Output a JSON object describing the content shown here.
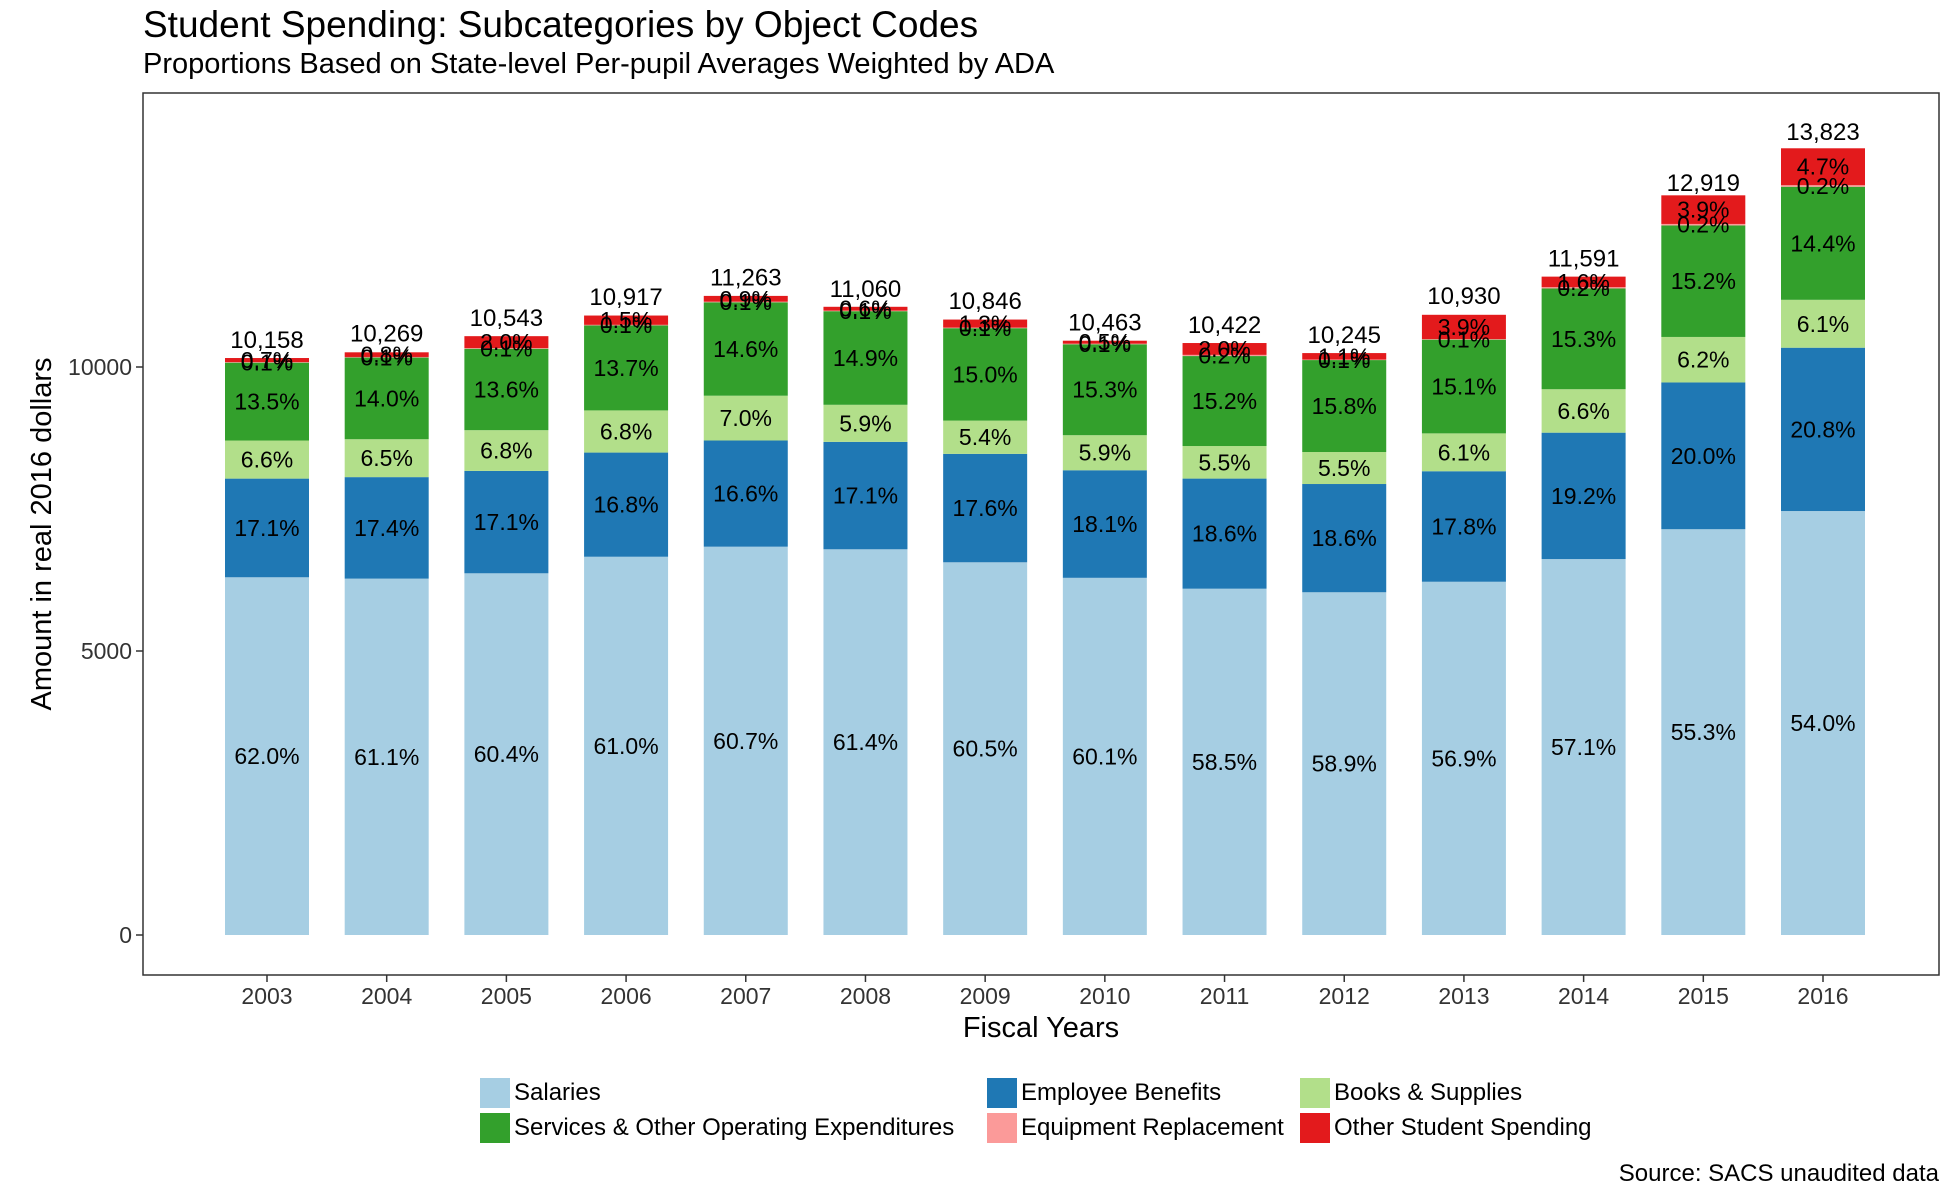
{
  "title": "Student Spending: Subcategories by Object Codes",
  "subtitle": "Proportions Based on State-level Per-pupil Averages Weighted by ADA",
  "source": "Source: SACS unaudited data",
  "legend": [
    {
      "label": "Salaries",
      "color": "#a6cee3"
    },
    {
      "label": "Employee Benefits",
      "color": "#1f78b4"
    },
    {
      "label": "Books & Supplies",
      "color": "#b2df8a"
    },
    {
      "label": "Services & Other Operating Expenditures",
      "color": "#33a02c"
    },
    {
      "label": "Equipment Replacement",
      "color": "#fb9a99"
    },
    {
      "label": "Other Student Spending",
      "color": "#e31a1c"
    }
  ],
  "chart_data": {
    "type": "bar",
    "stacked": true,
    "xlabel": "Fiscal Years",
    "ylabel": "Amount in real 2016 dollars",
    "ylim": [
      0,
      14600
    ],
    "yticks": [
      0,
      5000,
      10000
    ],
    "grid": false,
    "legend_position": "bottom",
    "categories": [
      "2003",
      "2004",
      "2005",
      "2006",
      "2007",
      "2008",
      "2009",
      "2010",
      "2011",
      "2012",
      "2013",
      "2014",
      "2015",
      "2016"
    ],
    "totals": [
      10158,
      10269,
      10543,
      10917,
      11263,
      11060,
      10846,
      10463,
      10422,
      10245,
      10930,
      11591,
      12919,
      13823
    ],
    "total_labels": [
      "10,158",
      "10,269",
      "10,543",
      "10,917",
      "11,263",
      "11,060",
      "10,846",
      "10,463",
      "10,422",
      "10,245",
      "10,930",
      "11,591",
      "12,919",
      "13,823"
    ],
    "series": [
      {
        "name": "Salaries",
        "color": "#a6cee3",
        "pct": [
          62.0,
          61.1,
          60.4,
          61.0,
          60.7,
          61.4,
          60.5,
          60.1,
          58.5,
          58.9,
          56.9,
          57.1,
          55.3,
          54.0
        ],
        "labels": [
          "62.0%",
          "61.1%",
          "60.4%",
          "61.0%",
          "60.7%",
          "61.4%",
          "60.5%",
          "60.1%",
          "58.5%",
          "58.9%",
          "56.9%",
          "57.1%",
          "55.3%",
          "54.0%"
        ]
      },
      {
        "name": "Employee Benefits",
        "color": "#1f78b4",
        "pct": [
          17.1,
          17.4,
          17.1,
          16.8,
          16.6,
          17.1,
          17.6,
          18.1,
          18.6,
          18.6,
          17.8,
          19.2,
          20.0,
          20.8
        ],
        "labels": [
          "17.1%",
          "17.4%",
          "17.1%",
          "16.8%",
          "16.6%",
          "17.1%",
          "17.6%",
          "18.1%",
          "18.6%",
          "18.6%",
          "17.8%",
          "19.2%",
          "20.0%",
          "20.8%"
        ]
      },
      {
        "name": "Books & Supplies",
        "color": "#b2df8a",
        "pct": [
          6.6,
          6.5,
          6.8,
          6.8,
          7.0,
          5.9,
          5.4,
          5.9,
          5.5,
          5.5,
          6.1,
          6.6,
          6.2,
          6.1
        ],
        "labels": [
          "6.6%",
          "6.5%",
          "6.8%",
          "6.8%",
          "7.0%",
          "5.9%",
          "5.4%",
          "5.9%",
          "5.5%",
          "5.5%",
          "6.1%",
          "6.6%",
          "6.2%",
          "6.1%"
        ]
      },
      {
        "name": "Services & Other Operating Expenditures",
        "color": "#33a02c",
        "pct": [
          13.5,
          14.0,
          13.6,
          13.7,
          14.6,
          14.9,
          15.0,
          15.3,
          15.2,
          15.8,
          15.1,
          15.3,
          15.2,
          14.4
        ],
        "labels": [
          "13.5%",
          "14.0%",
          "13.6%",
          "13.7%",
          "14.6%",
          "14.9%",
          "15.0%",
          "15.3%",
          "15.2%",
          "15.8%",
          "15.1%",
          "15.3%",
          "15.2%",
          "14.4%"
        ]
      },
      {
        "name": "Equipment Replacement",
        "color": "#fb9a99",
        "pct": [
          0.1,
          0.1,
          0.1,
          0.1,
          0.1,
          0.1,
          0.1,
          0.1,
          0.2,
          0.1,
          0.1,
          0.2,
          0.2,
          0.2
        ],
        "labels": [
          "0.1%",
          "0.1%",
          "0.1%",
          "0.1%",
          "0.1%",
          "0.1%",
          "0.1%",
          "0.1%",
          "0.2%",
          "0.1%",
          "0.1%",
          "0.2%",
          "0.2%",
          "0.2%"
        ]
      },
      {
        "name": "Other Student Spending",
        "color": "#e31a1c",
        "pct": [
          0.7,
          0.8,
          2.0,
          1.5,
          0.9,
          0.6,
          1.3,
          0.5,
          2.0,
          1.1,
          3.9,
          1.6,
          3.9,
          4.7
        ],
        "labels": [
          "0.7%",
          "0.8%",
          "2.0%",
          "1.5%",
          "0.9%",
          "0.6%",
          "1.3%",
          "0.5%",
          "2.0%",
          "1.1%",
          "3.9%",
          "1.6%",
          "3.9%",
          "4.7%"
        ]
      }
    ]
  }
}
